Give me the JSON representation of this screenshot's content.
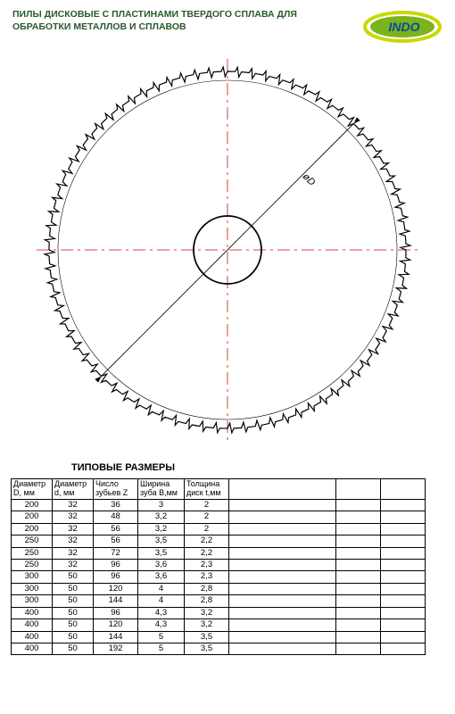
{
  "title": {
    "line1": "ПИЛЫ ДИСКОВЫЕ С ПЛАСТИНАМИ ТВЕРДОГО СПЛАВА ДЛЯ",
    "line2": "ОБРАБОТКИ МЕТАЛЛОВ И СПЛАВОВ"
  },
  "logo": {
    "text": "INDO",
    "bg_color": "#7ab31b",
    "ellipse_stroke": "#c7d900",
    "text_color": "#0a4a9a"
  },
  "diagram": {
    "outer_radius": 200,
    "inner_radius": 38,
    "teeth_count": 80,
    "label": "øD",
    "centerline_color": "#d94040",
    "stroke_color": "#000000"
  },
  "table_title": "ТИПОВЫЕ РАЗМЕРЫ",
  "columns": [
    {
      "h1": "Диаметр",
      "h2": "D, мм",
      "cls": "col-D"
    },
    {
      "h1": "Диаметр",
      "h2": "d, мм",
      "cls": "col-d"
    },
    {
      "h1": "Число",
      "h2": "зубьев Z",
      "cls": "col-Z"
    },
    {
      "h1": "Ширина",
      "h2": "зуба B,мм",
      "cls": "col-B"
    },
    {
      "h1": "Толщина",
      "h2": "диск t,мм",
      "cls": "col-t"
    },
    {
      "h1": "",
      "h2": "",
      "cls": "col-e1"
    },
    {
      "h1": "",
      "h2": "",
      "cls": "col-e2"
    },
    {
      "h1": "",
      "h2": "",
      "cls": "col-e3"
    }
  ],
  "rows": [
    [
      "200",
      "32",
      "36",
      "3",
      "2",
      "",
      "",
      ""
    ],
    [
      "200",
      "32",
      "48",
      "3,2",
      "2",
      "",
      "",
      ""
    ],
    [
      "200",
      "32",
      "56",
      "3,2",
      "2",
      "",
      "",
      ""
    ],
    [
      "250",
      "32",
      "56",
      "3,5",
      "2,2",
      "",
      "",
      ""
    ],
    [
      "250",
      "32",
      "72",
      "3,5",
      "2,2",
      "",
      "",
      ""
    ],
    [
      "250",
      "32",
      "96",
      "3,6",
      "2,3",
      "",
      "",
      ""
    ],
    [
      "300",
      "50",
      "96",
      "3,6",
      "2,3",
      "",
      "",
      ""
    ],
    [
      "300",
      "50",
      "120",
      "4",
      "2,8",
      "",
      "",
      ""
    ],
    [
      "300",
      "50",
      "144",
      "4",
      "2,8",
      "",
      "",
      ""
    ],
    [
      "400",
      "50",
      "96",
      "4,3",
      "3,2",
      "",
      "",
      ""
    ],
    [
      "400",
      "50",
      "120",
      "4,3",
      "3,2",
      "",
      "",
      ""
    ],
    [
      "400",
      "50",
      "144",
      "5",
      "3,5",
      "",
      "",
      ""
    ],
    [
      "400",
      "50",
      "192",
      "5",
      "3,5",
      "",
      "",
      ""
    ]
  ]
}
